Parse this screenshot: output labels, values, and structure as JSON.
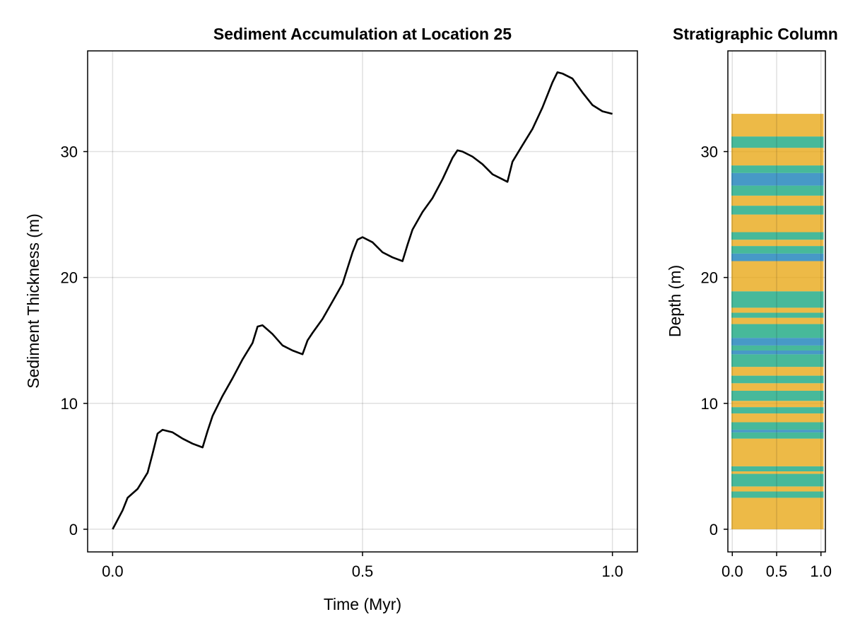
{
  "chart_data": [
    {
      "type": "line",
      "title": "Sediment Accumulation at Location 25",
      "xlabel": "Time (Myr)",
      "ylabel": "Sediment Thickness (m)",
      "xlim": [
        -0.05,
        1.05
      ],
      "ylim": [
        -1.8,
        38.0
      ],
      "xticks": [
        "0.0",
        "0.5",
        "1.0"
      ],
      "yticks": [
        "0",
        "10",
        "20",
        "30"
      ],
      "grid": true,
      "line_color": "#000000",
      "series": [
        {
          "x": [
            0.0,
            0.02,
            0.03,
            0.05,
            0.07,
            0.08,
            0.09,
            0.1,
            0.12,
            0.14,
            0.16,
            0.18,
            0.19,
            0.2,
            0.22,
            0.24,
            0.26,
            0.28,
            0.29,
            0.3,
            0.32,
            0.34,
            0.36,
            0.38,
            0.39,
            0.4,
            0.42,
            0.44,
            0.46,
            0.48,
            0.49,
            0.5,
            0.52,
            0.54,
            0.56,
            0.58,
            0.59,
            0.6,
            0.62,
            0.64,
            0.66,
            0.68,
            0.69,
            0.7,
            0.72,
            0.74,
            0.76,
            0.78,
            0.79,
            0.8,
            0.82,
            0.84,
            0.86,
            0.88,
            0.89,
            0.9,
            0.92,
            0.94,
            0.96,
            0.98,
            1.0
          ],
          "y": [
            0.0,
            1.5,
            2.5,
            3.2,
            4.5,
            6.0,
            7.6,
            7.9,
            7.7,
            7.2,
            6.8,
            6.5,
            7.8,
            9.0,
            10.6,
            12.0,
            13.5,
            14.8,
            16.1,
            16.2,
            15.5,
            14.6,
            14.2,
            13.9,
            15.0,
            15.6,
            16.7,
            18.1,
            19.5,
            22.0,
            23.0,
            23.2,
            22.8,
            22.0,
            21.6,
            21.3,
            22.6,
            23.8,
            25.2,
            26.3,
            27.8,
            29.5,
            30.1,
            30.0,
            29.6,
            29.0,
            28.2,
            27.8,
            27.6,
            29.2,
            30.5,
            31.8,
            33.5,
            35.5,
            36.3,
            36.2,
            35.8,
            34.7,
            33.7,
            33.2,
            33.0
          ]
        }
      ]
    },
    {
      "type": "bar",
      "title": "Stratigraphic Column",
      "xlabel": "",
      "ylabel": "Depth (m)",
      "xlim": [
        -0.05,
        1.05
      ],
      "ylim": [
        -1.8,
        38.0
      ],
      "xticks": [
        "0.0",
        "0.5",
        "1.0"
      ],
      "yticks": [
        "0",
        "10",
        "20",
        "30"
      ],
      "grid": true,
      "colors": {
        "orange": "#E69F00",
        "green": "#009E73",
        "blue": "#0072B2"
      },
      "opacity": 0.72,
      "layers": [
        {
          "bottom": 0.0,
          "top": 2.5,
          "color": "orange"
        },
        {
          "bottom": 2.5,
          "top": 3.0,
          "color": "green"
        },
        {
          "bottom": 3.0,
          "top": 3.4,
          "color": "orange"
        },
        {
          "bottom": 3.4,
          "top": 4.4,
          "color": "green"
        },
        {
          "bottom": 4.4,
          "top": 4.6,
          "color": "orange"
        },
        {
          "bottom": 4.6,
          "top": 5.0,
          "color": "green"
        },
        {
          "bottom": 5.0,
          "top": 7.2,
          "color": "orange"
        },
        {
          "bottom": 7.2,
          "top": 7.7,
          "color": "green"
        },
        {
          "bottom": 7.7,
          "top": 7.9,
          "color": "blue"
        },
        {
          "bottom": 7.9,
          "top": 8.5,
          "color": "green"
        },
        {
          "bottom": 8.5,
          "top": 9.2,
          "color": "orange"
        },
        {
          "bottom": 9.2,
          "top": 9.7,
          "color": "green"
        },
        {
          "bottom": 9.7,
          "top": 10.2,
          "color": "orange"
        },
        {
          "bottom": 10.2,
          "top": 11.0,
          "color": "green"
        },
        {
          "bottom": 11.0,
          "top": 11.6,
          "color": "orange"
        },
        {
          "bottom": 11.6,
          "top": 12.2,
          "color": "green"
        },
        {
          "bottom": 12.2,
          "top": 12.9,
          "color": "orange"
        },
        {
          "bottom": 12.9,
          "top": 13.9,
          "color": "green"
        },
        {
          "bottom": 13.9,
          "top": 14.2,
          "color": "blue"
        },
        {
          "bottom": 14.2,
          "top": 14.6,
          "color": "green"
        },
        {
          "bottom": 14.6,
          "top": 15.2,
          "color": "blue"
        },
        {
          "bottom": 15.2,
          "top": 16.3,
          "color": "green"
        },
        {
          "bottom": 16.3,
          "top": 16.8,
          "color": "orange"
        },
        {
          "bottom": 16.8,
          "top": 17.2,
          "color": "green"
        },
        {
          "bottom": 17.2,
          "top": 17.6,
          "color": "orange"
        },
        {
          "bottom": 17.6,
          "top": 18.9,
          "color": "green"
        },
        {
          "bottom": 18.9,
          "top": 21.3,
          "color": "orange"
        },
        {
          "bottom": 21.3,
          "top": 21.9,
          "color": "blue"
        },
        {
          "bottom": 21.9,
          "top": 22.5,
          "color": "green"
        },
        {
          "bottom": 22.5,
          "top": 23.0,
          "color": "orange"
        },
        {
          "bottom": 23.0,
          "top": 23.6,
          "color": "green"
        },
        {
          "bottom": 23.6,
          "top": 25.0,
          "color": "orange"
        },
        {
          "bottom": 25.0,
          "top": 25.7,
          "color": "green"
        },
        {
          "bottom": 25.7,
          "top": 26.5,
          "color": "orange"
        },
        {
          "bottom": 26.5,
          "top": 27.3,
          "color": "green"
        },
        {
          "bottom": 27.3,
          "top": 28.3,
          "color": "blue"
        },
        {
          "bottom": 28.3,
          "top": 28.9,
          "color": "green"
        },
        {
          "bottom": 28.9,
          "top": 30.3,
          "color": "orange"
        },
        {
          "bottom": 30.3,
          "top": 31.2,
          "color": "green"
        },
        {
          "bottom": 31.2,
          "top": 33.0,
          "color": "orange"
        }
      ]
    }
  ]
}
